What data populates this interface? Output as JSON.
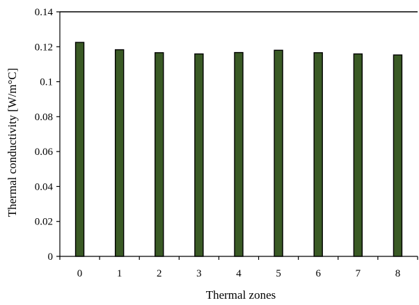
{
  "chart_data": {
    "type": "bar",
    "categories": [
      "0",
      "1",
      "2",
      "3",
      "4",
      "5",
      "6",
      "7",
      "8"
    ],
    "values": [
      0.1225,
      0.1183,
      0.1166,
      0.1159,
      0.1167,
      0.118,
      0.1166,
      0.1159,
      0.1153
    ],
    "xlabel": "Thermal zones",
    "ylabel": "Thermal conductivity [W/m°C]",
    "ylim": [
      0,
      0.14
    ],
    "yticks": [
      "0",
      "0.02",
      "0.04",
      "0.06",
      "0.08",
      "0.1",
      "0.12",
      "0.14"
    ],
    "grid": false,
    "bar_color": "#3a5a25"
  }
}
